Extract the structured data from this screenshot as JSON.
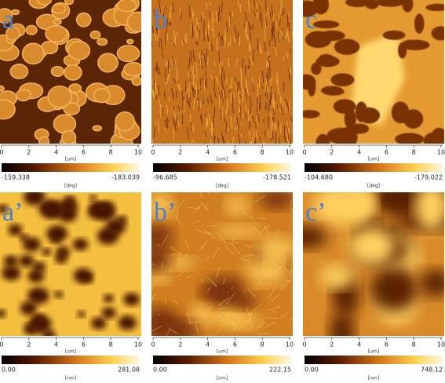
{
  "panels": [
    {
      "label": "a",
      "x_ticks": [
        "0",
        "2",
        "4",
        "6",
        "8",
        "10"
      ],
      "x_unit": "[um]",
      "scale_min": "-159.338",
      "scale_max": "-183.039",
      "scale_unit": "[deg]"
    },
    {
      "label": "b",
      "x_ticks": [
        "0",
        "2",
        "4",
        "6",
        "8",
        "10"
      ],
      "x_unit": "[um]",
      "scale_min": "-96.685",
      "scale_max": "-178.521",
      "scale_unit": "[deg]"
    },
    {
      "label": "c",
      "x_ticks": [
        "0",
        "2",
        "4",
        "6",
        "8",
        "10"
      ],
      "x_unit": "[um]",
      "scale_min": "-104.680",
      "scale_max": "-179.022",
      "scale_unit": "[deg]"
    },
    {
      "label": "a’",
      "x_ticks": [
        "0",
        "2",
        "4",
        "6",
        "8",
        "10"
      ],
      "x_unit": "[um]",
      "scale_min": "0.00",
      "scale_max": "281.08",
      "scale_unit": "[nm]"
    },
    {
      "label": "b’",
      "x_ticks": [
        "0",
        "2",
        "4",
        "6",
        "8",
        "10"
      ],
      "x_unit": "[um]",
      "scale_min": "0.00",
      "scale_max": "222.15",
      "scale_unit": "[nm]"
    },
    {
      "label": "c’",
      "x_ticks": [
        "0",
        "2",
        "4",
        "6",
        "8",
        "10"
      ],
      "x_unit": "[um]",
      "scale_min": "0.00",
      "scale_max": "748.12",
      "scale_unit": "[nm]"
    }
  ]
}
